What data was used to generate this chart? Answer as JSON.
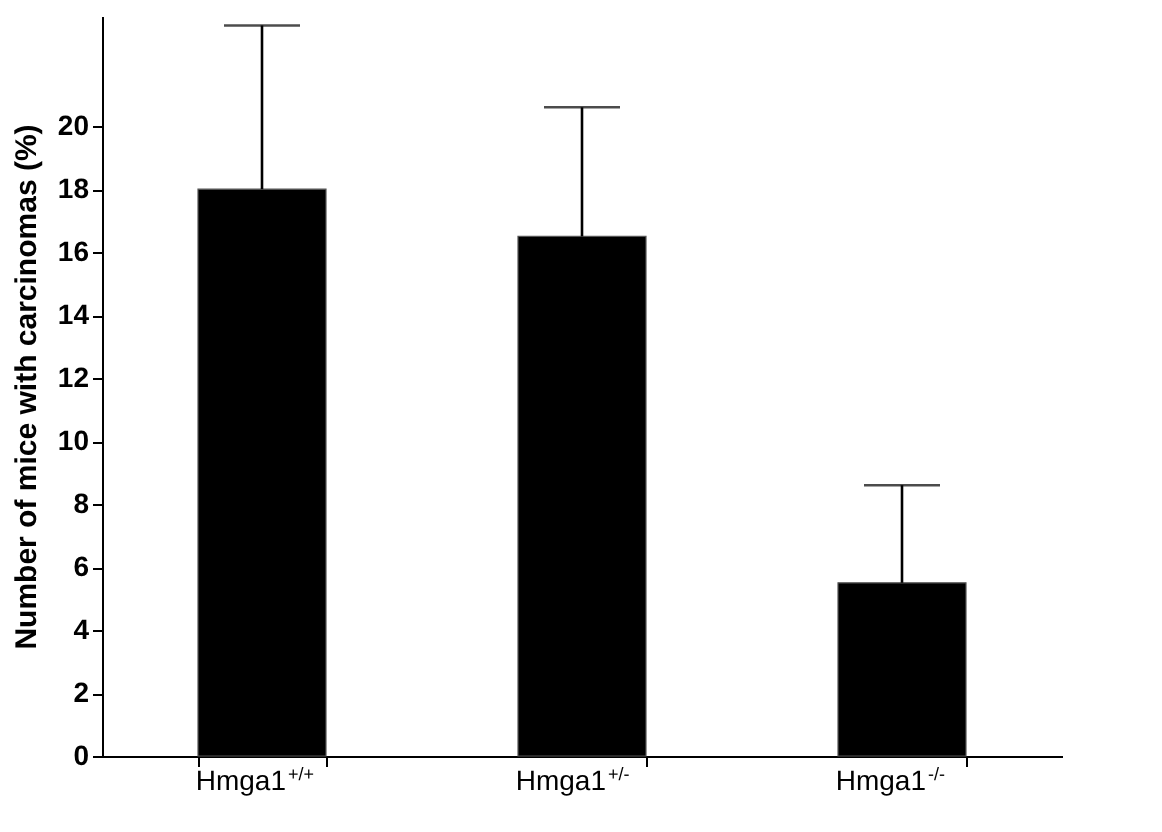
{
  "chart_data": {
    "type": "bar",
    "ylabel": "Number of mice with carcinomas (%)",
    "categories": [
      "Hmga1$^{+/+}$",
      "Hmga1$^{+/-}$",
      "Hmga1$^{-/-}$"
    ],
    "values": [
      18,
      16.5,
      5.5
    ],
    "color": "#000000",
    "errors": [
      [
        18,
        23.2
      ],
      [
        16.5,
        20.6
      ],
      [
        5.5,
        8.6
      ]
    ],
    "ylim": [
      0,
      23.5
    ],
    "yticks": [
      0,
      2,
      4,
      6,
      8,
      10,
      12,
      14,
      16,
      18,
      20
    ],
    "grid": false
  }
}
